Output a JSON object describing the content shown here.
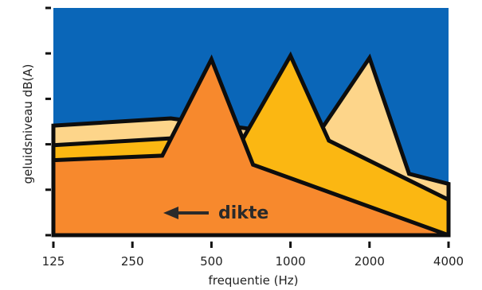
{
  "chart_data": {
    "type": "area",
    "title": "",
    "xlabel": "frequentie (Hz)",
    "ylabel": "geluidsniveau dB(A)",
    "x_scale": "log2",
    "x_ticks": [
      125,
      250,
      500,
      1000,
      2000,
      4000
    ],
    "x_tick_labels": [
      "125",
      "250",
      "500",
      "1000",
      "2000",
      "4000"
    ],
    "y_ticks": [
      0,
      1,
      2,
      3,
      4,
      5
    ],
    "y_tick_labels": [],
    "ylim": [
      0,
      5
    ],
    "background_color": "#0a66b8",
    "annotation": {
      "text": "dikte",
      "arrow_direction": "left"
    },
    "series": [
      {
        "color": "#fdd58a",
        "points": [
          [
            125,
            2.41
          ],
          [
            350,
            2.57
          ],
          [
            1250,
            2.15
          ],
          [
            2000,
            3.9
          ],
          [
            2830,
            1.35
          ],
          [
            4000,
            1.13
          ],
          [
            4000,
            0
          ]
        ]
      },
      {
        "color": "#fbb712",
        "points": [
          [
            125,
            1.98
          ],
          [
            400,
            2.15
          ],
          [
            640,
            1.99
          ],
          [
            1000,
            3.95
          ],
          [
            1400,
            2.08
          ],
          [
            4000,
            0.78
          ],
          [
            4000,
            0
          ]
        ]
      },
      {
        "color": "#f7892d",
        "points": [
          [
            125,
            1.65
          ],
          [
            325,
            1.75
          ],
          [
            500,
            3.87
          ],
          [
            720,
            1.55
          ],
          [
            4000,
            0
          ],
          [
            4000,
            0
          ]
        ]
      }
    ]
  }
}
